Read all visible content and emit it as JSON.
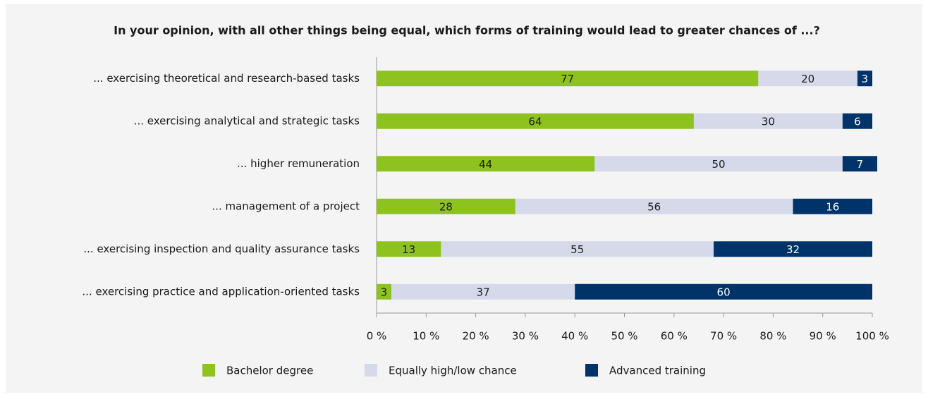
{
  "chart_data": {
    "type": "stacked_barh",
    "title": "In your opinion, with all other things being equal, which forms of training would lead to greater chances of ...?",
    "categories": [
      "... exercising theoretical and research-based tasks",
      "... exercising analytical and strategic tasks",
      "... higher remuneration",
      "... management of a project",
      "... exercising inspection and quality assurance tasks",
      "... exercising practice and application-oriented tasks"
    ],
    "series": [
      {
        "name": "Bachelor degree",
        "color": "#8dc21f",
        "label_color": "#1a1a1a",
        "values": [
          77,
          64,
          44,
          28,
          13,
          3
        ]
      },
      {
        "name": "Equally high/low chance",
        "color": "#d5d9e9",
        "label_color": "#1a1a1a",
        "values": [
          20,
          30,
          50,
          56,
          55,
          37
        ]
      },
      {
        "name": "Advanced training",
        "color": "#00336a",
        "label_color": "#ffffff",
        "values": [
          3,
          6,
          7,
          16,
          32,
          60
        ]
      }
    ],
    "xlim": [
      0,
      100
    ],
    "xticks": [
      {
        "value": 0,
        "label": "0 %"
      },
      {
        "value": 10,
        "label": "10 %"
      },
      {
        "value": 20,
        "label": "20 %"
      },
      {
        "value": 30,
        "label": "30 %"
      },
      {
        "value": 40,
        "label": "40 %"
      },
      {
        "value": 50,
        "label": "50 %"
      },
      {
        "value": 60,
        "label": "60 %"
      },
      {
        "value": 70,
        "label": "70 %"
      },
      {
        "value": 80,
        "label": "80 %"
      },
      {
        "value": 90,
        "label": "90 %"
      },
      {
        "value": 100,
        "label": "100 %"
      }
    ],
    "legend": "bottom"
  }
}
